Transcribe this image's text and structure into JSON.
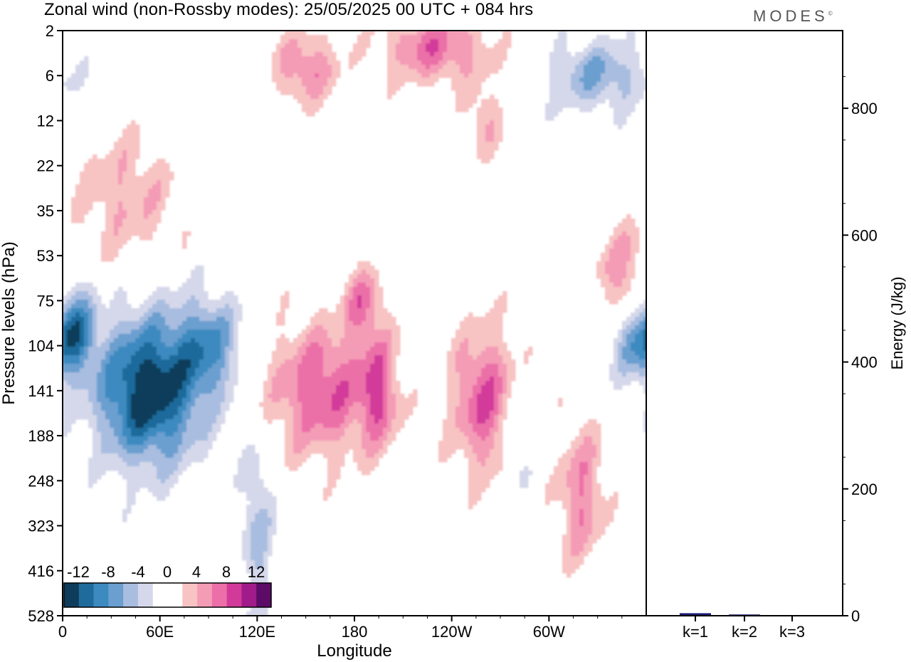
{
  "title": "Zonal wind (non-Rossby modes):  25/05/2025  00 UTC  + 084 hrs",
  "brand": "MODES",
  "brand_mark": "©",
  "colors": {
    "neg": [
      "#0e3c5a",
      "#1f6b9c",
      "#3d8ac0",
      "#6a9fcf",
      "#a8bde0",
      "#d5d8ea"
    ],
    "pos": [
      "#f8c3c3",
      "#f49bb6",
      "#ec6fa8",
      "#d23a9a",
      "#a01c8a",
      "#5c0c66"
    ],
    "bar": "#1a1a7a"
  },
  "chart_data": [
    {
      "type": "heatmap",
      "title": "Zonal wind (non-Rossby modes):  25/05/2025  00 UTC  + 084 hrs",
      "xlabel": "Longitude",
      "ylabel": "Pressure levels (hPa)",
      "x_ticks": [
        "0",
        "60E",
        "120E",
        "180",
        "120W",
        "60W"
      ],
      "y_ticks": [
        "2",
        "6",
        "12",
        "22",
        "35",
        "53",
        "75",
        "104",
        "141",
        "188",
        "248",
        "323",
        "416",
        "528"
      ],
      "colorbar_labels": [
        "-12",
        "-8",
        "-4",
        "0",
        "4",
        "8",
        "12"
      ],
      "colorbar_levels": [
        -14,
        -12,
        -10,
        -8,
        -6,
        -4,
        -2,
        0,
        2,
        4,
        6,
        8,
        10,
        12,
        14
      ],
      "features": [
        {
          "lon": 53,
          "p": 141,
          "u": -14,
          "lon_span": 40,
          "p_span": 2.0
        },
        {
          "lon": 90,
          "p": 104,
          "u": -7,
          "lon_span": 25,
          "p_span": 1.4
        },
        {
          "lon": 8,
          "p": 90,
          "u": -8,
          "lon_span": 15,
          "p_span": 1.2
        },
        {
          "lon": 120,
          "p": 330,
          "u": -5,
          "lon_span": 12,
          "p_span": 2.5
        },
        {
          "lon": 355,
          "p": 104,
          "u": -7,
          "lon_span": 20,
          "p_span": 1.0
        },
        {
          "lon": 330,
          "p": 6,
          "u": -6,
          "lon_span": 40,
          "p_span": 1.0
        },
        {
          "lon": 280,
          "p": 190,
          "u": -4,
          "lon_span": 10,
          "p_span": 1.5
        },
        {
          "lon": 160,
          "p": 141,
          "u": 8,
          "lon_span": 40,
          "p_span": 1.8
        },
        {
          "lon": 195,
          "p": 141,
          "u": 7,
          "lon_span": 15,
          "p_span": 1.6
        },
        {
          "lon": 185,
          "p": 75,
          "u": 6,
          "lon_span": 15,
          "p_span": 1.0
        },
        {
          "lon": 260,
          "p": 150,
          "u": 8,
          "lon_span": 25,
          "p_span": 2.0
        },
        {
          "lon": 320,
          "p": 270,
          "u": 6,
          "lon_span": 18,
          "p_span": 2.0
        },
        {
          "lon": 345,
          "p": 60,
          "u": 5,
          "lon_span": 20,
          "p_span": 1.3
        },
        {
          "lon": 230,
          "p": 3,
          "u": 7,
          "lon_span": 40,
          "p_span": 1.0
        },
        {
          "lon": 150,
          "p": 5,
          "u": 6,
          "lon_span": 25,
          "p_span": 1.0
        },
        {
          "lon": 40,
          "p": 30,
          "u": 4,
          "lon_span": 40,
          "p_span": 1.8
        },
        {
          "lon": 260,
          "p": 12,
          "u": 4,
          "lon_span": 15,
          "p_span": 1.0
        }
      ]
    },
    {
      "type": "bar",
      "categories": [
        "k=1",
        "k=2",
        "k=3"
      ],
      "values": [
        4,
        2,
        1
      ],
      "ylabel": "Energy (J/kg)",
      "ylim": [
        0,
        900
      ],
      "y_ticks": [
        "0",
        "200",
        "400",
        "600",
        "800"
      ]
    }
  ]
}
